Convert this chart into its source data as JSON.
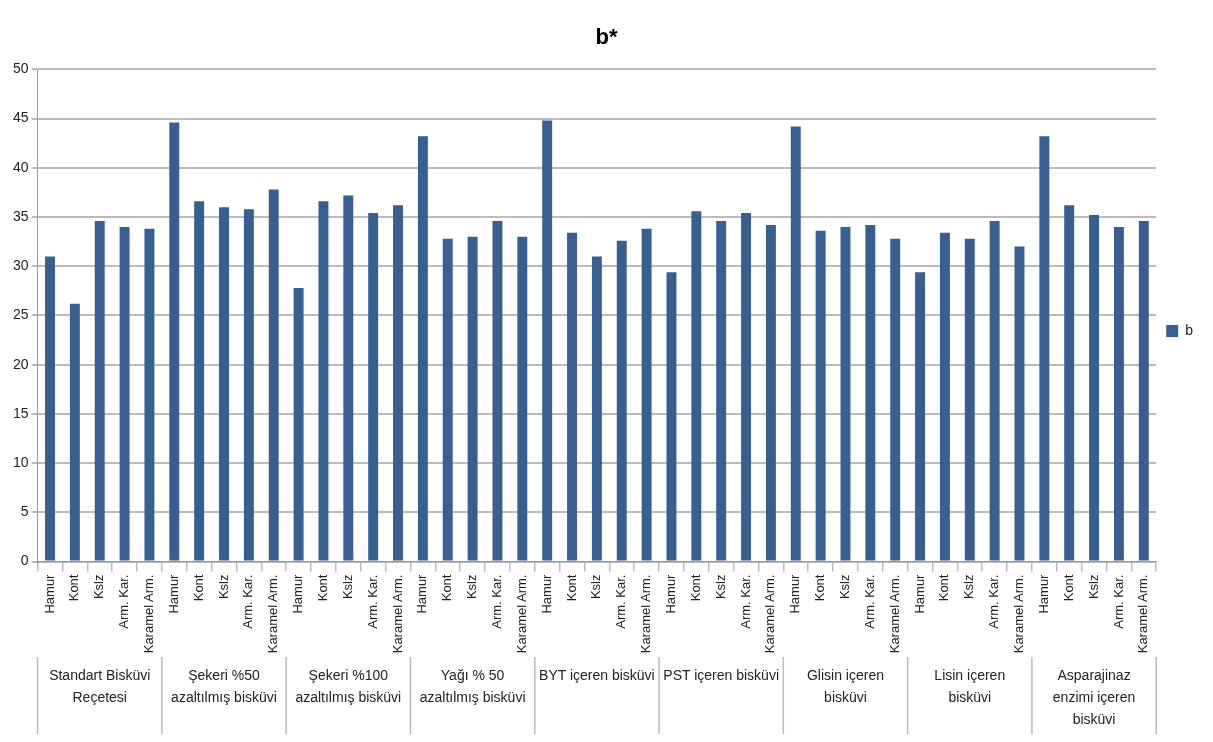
{
  "chart_data": {
    "type": "bar",
    "title": "b*",
    "categories": [
      "Hamur",
      "Kont",
      "Kslz",
      "Arm. Kar.",
      "Karamel Arm.",
      "Hamur",
      "Kont",
      "Kslz",
      "Arm. Kar.",
      "Karamel Arm.",
      "Hamur",
      "Kont",
      "Kslz",
      "Arm. Kar.",
      "Karamel Arm.",
      "Hamur",
      "Kont",
      "Kslz",
      "Arm. Kar.",
      "Karamel Arm.",
      "Hamur",
      "Kont",
      "Kslz",
      "Arm. Kar.",
      "Karamel Arm.",
      "Hamur",
      "Kont",
      "Kslz",
      "Arm. Kar.",
      "Karamel Arm.",
      "Hamur",
      "Kont",
      "Kslz",
      "Arm. Kar.",
      "Karamel Arm.",
      "Hamur",
      "Kont",
      "Kslz",
      "Arm. Kar.",
      "Karamel Arm.",
      "Hamur",
      "Kont",
      "Kslz",
      "Arm. Kar.",
      "Karamel Arm."
    ],
    "annotations": [
      "Standart Bisküvi Reçetesi",
      "Şekeri %50 azaltılmış bisküvi",
      "Şekeri %100 azaltılmış bisküvi",
      "Yağı % 50 azaltılmış bisküvi",
      "BYT içeren bisküvi",
      "PST içeren bisküvi",
      "Glisin içeren bisküvi",
      "Lisin içeren bisküvi",
      "Asparajinaz enzimi içeren bisküvi"
    ],
    "series": [
      {
        "name": "b",
        "color": "#375f91",
        "values": [
          31.0,
          26.2,
          34.6,
          34.0,
          33.8,
          44.6,
          36.6,
          36.0,
          35.8,
          37.8,
          27.8,
          36.6,
          37.2,
          35.4,
          36.2,
          43.2,
          32.8,
          33.0,
          34.6,
          33.0,
          44.8,
          33.4,
          31.0,
          32.6,
          33.8,
          29.4,
          35.6,
          34.6,
          35.4,
          34.2,
          44.2,
          33.6,
          34.0,
          34.2,
          32.8,
          29.4,
          33.4,
          32.8,
          34.6,
          32.0,
          43.2,
          36.2,
          35.2,
          34.0,
          34.6
        ]
      }
    ],
    "ylim": [
      0,
      50
    ],
    "yticks": [
      0,
      5,
      10,
      15,
      20,
      25,
      30,
      35,
      40,
      45,
      50
    ],
    "grid": "y",
    "legend": "right"
  }
}
